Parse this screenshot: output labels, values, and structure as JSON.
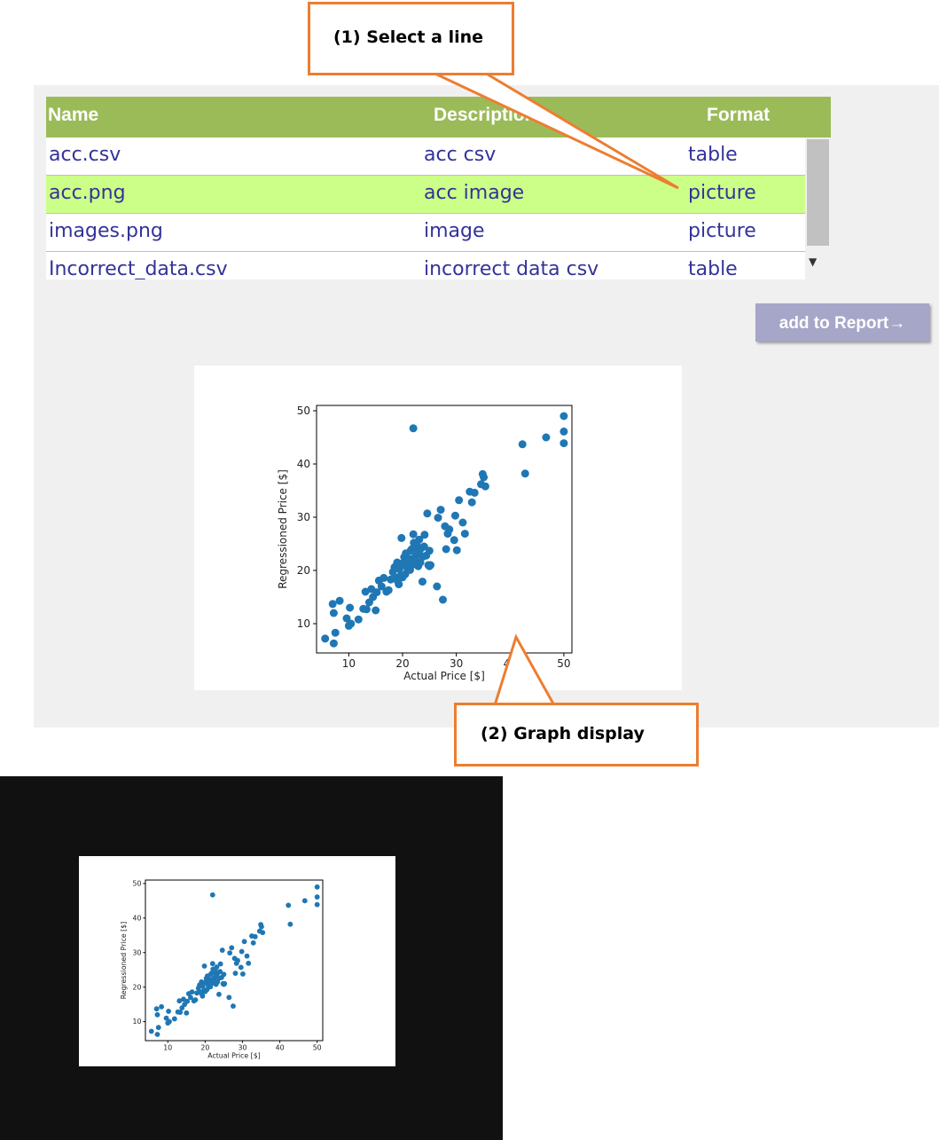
{
  "table": {
    "columns": [
      "Name",
      "Description",
      "Format"
    ],
    "rows": [
      {
        "name": "acc.csv",
        "description": "acc csv",
        "format": "table"
      },
      {
        "name": "acc.png",
        "description": "acc image",
        "format": "picture"
      },
      {
        "name": "images.png",
        "description": "image",
        "format": "picture"
      },
      {
        "name": "Incorrect_data.csv",
        "description": "incorrect data csv",
        "format": "table"
      }
    ],
    "selected_row": 1
  },
  "add_report_button": "add to Report→",
  "callouts": {
    "step1": "(1) Select a line",
    "step2": "(2) Graph display"
  },
  "colors": {
    "header_bg": "#9bbb59",
    "selected_row_bg": "#ccff88",
    "callout_border": "#ed7d31",
    "marker": "#1f77b4"
  },
  "chart_data": {
    "type": "scatter",
    "xlabel": "Actual Price [$]",
    "ylabel": "Regressioned Price [$]",
    "xlim": [
      4,
      51.5
    ],
    "ylim": [
      4.5,
      51
    ],
    "xticks": [
      10,
      20,
      30,
      40,
      50
    ],
    "yticks": [
      10,
      20,
      30,
      40,
      50
    ],
    "x": [
      5.6,
      7.0,
      7.2,
      7.2,
      7.5,
      8.3,
      9.6,
      10.0,
      10.2,
      10.4,
      11.8,
      12.7,
      13.1,
      13.3,
      13.8,
      14.2,
      14.5,
      15.0,
      15.2,
      15.6,
      16.1,
      16.5,
      17.0,
      17.4,
      17.8,
      18.2,
      18.5,
      18.7,
      19.0,
      19.1,
      19.3,
      19.4,
      19.6,
      19.8,
      20.0,
      20.1,
      20.3,
      20.5,
      20.6,
      20.8,
      21.0,
      21.2,
      21.4,
      21.5,
      21.7,
      21.7,
      21.9,
      22.0,
      22.1,
      22.2,
      22.3,
      22.5,
      22.6,
      22.8,
      22.9,
      23.0,
      23.1,
      23.2,
      23.3,
      23.5,
      23.7,
      23.8,
      24.0,
      24.1,
      24.4,
      24.6,
      24.8,
      25.0,
      25.0,
      25.2,
      26.4,
      26.6,
      27.1,
      27.5,
      27.9,
      28.1,
      28.4,
      28.7,
      29.6,
      29.8,
      30.1,
      30.5,
      31.2,
      31.6,
      32.5,
      32.9,
      33.4,
      34.6,
      34.9,
      35.1,
      35.4,
      42.3,
      42.8,
      46.7,
      50.0,
      50.0,
      50.0,
      22.0
    ],
    "y": [
      7.2,
      13.7,
      12.0,
      6.3,
      8.3,
      14.3,
      11.0,
      9.6,
      13.0,
      10.0,
      10.8,
      12.8,
      16.0,
      12.7,
      14.0,
      16.5,
      15.0,
      12.5,
      15.9,
      18.1,
      17.0,
      18.6,
      16.0,
      16.3,
      18.3,
      19.7,
      20.6,
      18.6,
      21.5,
      18.0,
      17.4,
      20.3,
      19.0,
      26.1,
      18.7,
      21.4,
      22.5,
      19.3,
      23.2,
      20.6,
      21.9,
      22.2,
      20.1,
      23.7,
      24.0,
      21.0,
      22.2,
      26.8,
      25.2,
      24.3,
      21.8,
      22.7,
      24.9,
      23.9,
      20.8,
      21.1,
      25.8,
      23.0,
      21.5,
      24.2,
      17.9,
      22.6,
      24.5,
      26.7,
      22.8,
      30.7,
      21.0,
      20.8,
      23.7,
      21.0,
      17.0,
      29.9,
      31.4,
      14.5,
      28.3,
      24.0,
      26.9,
      27.7,
      25.7,
      30.3,
      23.8,
      33.2,
      29.0,
      26.9,
      34.8,
      32.8,
      34.6,
      36.2,
      38.1,
      37.5,
      35.8,
      43.7,
      38.2,
      45.0,
      49.0,
      46.1,
      43.9,
      46.7
    ]
  }
}
